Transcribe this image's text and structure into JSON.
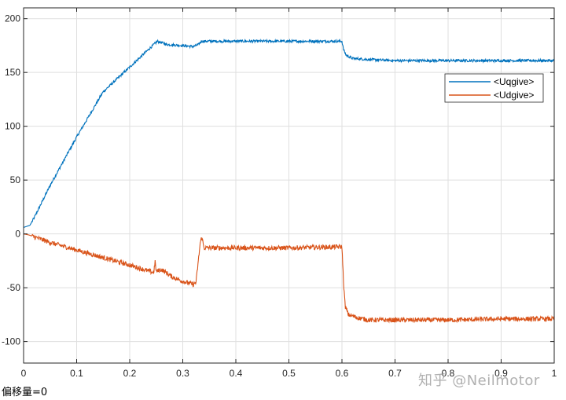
{
  "chart_data": {
    "type": "line",
    "title": "",
    "xlabel": "",
    "ylabel": "",
    "xlim": [
      0,
      1
    ],
    "ylim": [
      -120,
      210
    ],
    "x_ticks": [
      0,
      0.1,
      0.2,
      0.3,
      0.4,
      0.5,
      0.6,
      0.7,
      0.8,
      0.9,
      1
    ],
    "x_tick_labels": [
      "0",
      "0.1",
      "0.2",
      "0.3",
      "0.4",
      "0.5",
      "0.6",
      "0.7",
      "0.8",
      "0.9",
      "1"
    ],
    "y_ticks": [
      -100,
      -50,
      0,
      50,
      100,
      150,
      200
    ],
    "y_tick_labels": [
      "-100",
      "-50",
      "0",
      "50",
      "100",
      "150",
      "200"
    ],
    "grid": true,
    "legend_position": "top-right",
    "series": [
      {
        "name": "<Uqgive>",
        "color": "#0072BD",
        "noise": 1.2,
        "points": [
          [
            0,
            6
          ],
          [
            0.012,
            8
          ],
          [
            0.02,
            15
          ],
          [
            0.05,
            45
          ],
          [
            0.1,
            90
          ],
          [
            0.15,
            132
          ],
          [
            0.2,
            155
          ],
          [
            0.25,
            178
          ],
          [
            0.252,
            179
          ],
          [
            0.27,
            176
          ],
          [
            0.3,
            175
          ],
          [
            0.32,
            174
          ],
          [
            0.33,
            176
          ],
          [
            0.335,
            179
          ],
          [
            0.4,
            179
          ],
          [
            0.5,
            179
          ],
          [
            0.6,
            179
          ],
          [
            0.603,
            171
          ],
          [
            0.608,
            166
          ],
          [
            0.62,
            163
          ],
          [
            0.65,
            162
          ],
          [
            0.7,
            161
          ],
          [
            0.8,
            161
          ],
          [
            0.9,
            161
          ],
          [
            1,
            161
          ]
        ]
      },
      {
        "name": "<Udgive>",
        "color": "#D95319",
        "noise": 2.2,
        "points": [
          [
            0,
            0
          ],
          [
            0.01,
            -1
          ],
          [
            0.05,
            -8
          ],
          [
            0.1,
            -15
          ],
          [
            0.15,
            -22
          ],
          [
            0.2,
            -29
          ],
          [
            0.245,
            -36
          ],
          [
            0.248,
            -26
          ],
          [
            0.25,
            -35
          ],
          [
            0.26,
            -33
          ],
          [
            0.28,
            -40
          ],
          [
            0.3,
            -44
          ],
          [
            0.32,
            -47
          ],
          [
            0.325,
            -45
          ],
          [
            0.33,
            -22
          ],
          [
            0.333,
            -8
          ],
          [
            0.336,
            -3
          ],
          [
            0.34,
            -13
          ],
          [
            0.4,
            -13
          ],
          [
            0.5,
            -13
          ],
          [
            0.6,
            -12
          ],
          [
            0.603,
            -45
          ],
          [
            0.606,
            -67
          ],
          [
            0.612,
            -75
          ],
          [
            0.63,
            -78
          ],
          [
            0.65,
            -80
          ],
          [
            0.7,
            -80
          ],
          [
            0.8,
            -80
          ],
          [
            0.9,
            -79
          ],
          [
            1,
            -79
          ]
        ]
      }
    ]
  },
  "footer": {
    "offset_label": "偏移量=0",
    "watermark": "知乎 @Neilmotor"
  }
}
